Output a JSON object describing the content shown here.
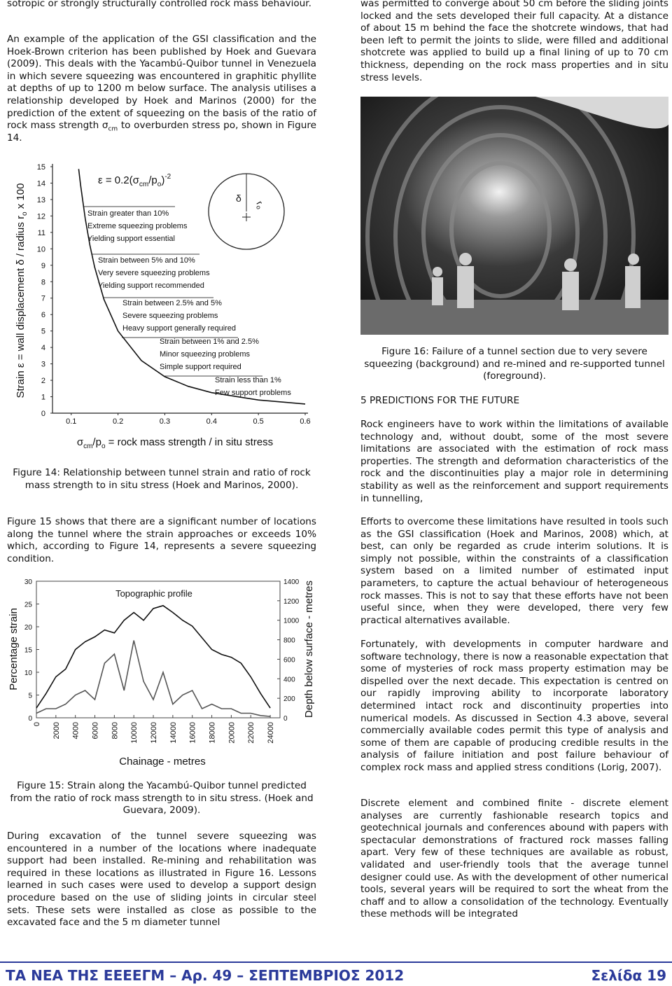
{
  "left_column": {
    "fragment": "sotropic or strongly structurally controlled rock mass behaviour.",
    "paragraph_1": {
      "before": "An example of the application of the GSI classification and the Hoek-Brown criterion has been published by Hoek and Guevara (2009). This deals with the Yacambú-Quibor tunnel in Venezuela in which severe squeezing was encountered in graphitic phyllite at depths of up to 1200 m below surface. The analysis utilises a relationship developed by Hoek and Marinos (2000) for the prediction of the extent of squeezing on the basis of the ratio of rock mass strength σ",
      "sub": "cm",
      "after": " to overburden stress po, shown in Figure 14."
    },
    "caption_14": "Figure 14: Relationship between tunnel strain and ratio of rock mass strength to in situ stress (Hoek and Marinos, 2000).",
    "paragraph_2": "Figure 15 shows that there are a significant number of locations along the tunnel where the strain approaches or exceeds 10% which, according to Figure 14, represents a severe squeezing condition.",
    "caption_15": "Figure 15: Strain along the Yacambú-Quibor tunnel predicted from the ratio of rock mass strength to in situ stress. (Hoek and Guevara, 2009).",
    "paragraph_3": "During excavation of the tunnel severe squeezing was encountered in a number of the locations where inadequate support had been installed. Re-mining and rehabilitation was required in these locations as illustrated in Figure 16. Lessons learned in such cases were used to develop a support design procedure based on the use of sliding joints in circular steel sets. These sets were installed as close as possible to the excavated face and the 5 m diameter tunnel"
  },
  "right_column": {
    "paragraph_1": "was permitted to converge about 50 cm before the sliding joints locked and the sets developed their full capacity. At a distance of about 15 m behind the face the shotcrete windows, that had been left to permit the joints to slide, were filled and additional shotcrete was applied to build up a final lining of up to 70 cm thickness, depending on the rock mass properties and in situ stress levels.",
    "caption_16": "Figure 16: Failure of a tunnel section due to very severe squeezing (background) and re-mined and re-supported tunnel (foreground).",
    "heading": "5 PREDICTIONS FOR THE FUTURE",
    "paragraph_2": "Rock engineers have to work within the limitations of available technology and, without doubt, some of the most severe limitations are associated with the estimation of rock mass properties. The strength and deformation characteristics of the rock and the discontinuities play a major role in determining stability as well as the reinforcement and support requirements in tunnelling,",
    "paragraph_3": "Efforts to overcome these limitations have resulted in tools such as the GSI classification (Hoek and Marinos, 2008) which, at best, can only be regarded as crude interim solutions. It is simply not possible, within the constraints of a classification system based on a limited number of estimated input parameters, to capture the actual behaviour of heterogeneous rock masses. This is not to say that these efforts have not been useful since, when they were developed, there very few practical alternatives available.",
    "paragraph_4": "Fortunately, with developments in computer hardware and software technology, there is now a reasonable expectation that some of mysteries of rock mass property estimation may be dispelled over the next decade. This expectation is centred on our rapidly improving ability to incorporate laboratory determined intact rock and discontinuity properties into numerical models. As discussed in Section 4.3 above, several commercially available codes permit this type of analysis and some of them are capable of producing credible results in the analysis of failure initiation and post failure behaviour of complex rock mass and applied stress conditions (Lorig, 2007).",
    "paragraph_5": "Discrete element and combined finite - discrete element analyses are currently fashionable research topics and geotechnical journals and conferences abound with papers with spectacular demonstrations of fractured rock masses falling apart. Very few of these techniques are available as robust, validated and user-friendly tools that the average tunnel designer could use. As with the development of other numerical tools, several years will be required to sort the wheat from the chaff and to allow a consolidation of the technology. Eventually these methods will be integrated"
  },
  "footer": {
    "left": "ΤΑ ΝΕΑ ΤΗΣ ΕΕΕΕΓΜ – Αρ. 49 – ΣΕΠΤΕΜΒΡΙΟΣ 2012",
    "right": "Σελίδα 19"
  },
  "chart_data": [
    {
      "type": "line",
      "formula": [
        "ε = 0.2(σ",
        "cm",
        "/p",
        "o",
        ")",
        "-2"
      ],
      "y_label": [
        "Strain ε = wall displacement δ / radius r",
        "o",
        " x 100"
      ],
      "x_label": [
        "σ",
        "cm",
        "/p",
        "o",
        " = rock mass strength / in situ stress"
      ],
      "circle_labels": [
        "δ",
        "r",
        "o"
      ],
      "x": [
        0.116,
        0.12,
        0.13,
        0.14,
        0.15,
        0.17,
        0.2,
        0.25,
        0.3,
        0.35,
        0.4,
        0.5,
        0.6
      ],
      "values": [
        14.86,
        13.89,
        11.83,
        10.2,
        8.89,
        6.92,
        5.0,
        3.2,
        2.22,
        1.63,
        1.25,
        0.8,
        0.56
      ],
      "color": "#111111",
      "xlim": [
        0.06,
        0.6
      ],
      "ylim": [
        0,
        15
      ],
      "xticks": [
        0.1,
        0.2,
        0.3,
        0.4,
        0.5,
        0.6
      ],
      "yticks": [
        0,
        1,
        2,
        3,
        4,
        5,
        6,
        7,
        8,
        9,
        10,
        11,
        12,
        13,
        14,
        15
      ],
      "annotations": [
        [
          "Strain greater than 10%",
          "Extreme squeezing problems",
          "Yielding support essential"
        ],
        [
          "Strain between 5% and 10%",
          "Very severe squeezing problems",
          "Yielding support recommended"
        ],
        [
          "Strain between 2.5% and 5%",
          "Severe squeezing problems",
          "Heavy support generally required"
        ],
        [
          "Strain between 1% and 2.5%",
          "Minor squeezing problems",
          "Simple support required"
        ],
        [
          "Strain less than 1%",
          "Few support problems"
        ]
      ]
    },
    {
      "type": "line",
      "y_label": "Percentage strain",
      "y2_label": "Depth below surface - metres",
      "x_label": "Chainage - metres",
      "annotation": "Topographic profile",
      "x": [
        0,
        1000,
        2000,
        3000,
        4000,
        5000,
        6000,
        7000,
        8000,
        9000,
        10000,
        11000,
        12000,
        13000,
        14000,
        15000,
        16000,
        17000,
        18000,
        19000,
        20000,
        21000,
        22000,
        23000,
        24000
      ],
      "series": [
        {
          "color": "#555555",
          "values": [
            1,
            2,
            2,
            3,
            5,
            6,
            4,
            12,
            14,
            6,
            17,
            8,
            4,
            10,
            3,
            5,
            6,
            2,
            3,
            2,
            2,
            1,
            1,
            0.5,
            0.3
          ]
        },
        {
          "color": "#111111",
          "axis": "y2",
          "values": [
            100,
            250,
            420,
            500,
            700,
            780,
            830,
            900,
            870,
            1000,
            1080,
            1000,
            1120,
            1150,
            1080,
            1000,
            940,
            820,
            700,
            650,
            620,
            560,
            420,
            250,
            100
          ]
        }
      ],
      "xlim": [
        0,
        25000
      ],
      "ylim": [
        0,
        30
      ],
      "y2lim": [
        0,
        1400
      ],
      "xticks": [
        0,
        2000,
        4000,
        6000,
        8000,
        10000,
        12000,
        14000,
        16000,
        18000,
        20000,
        22000,
        24000
      ],
      "yticks": [
        0,
        5,
        10,
        15,
        20,
        25,
        30
      ],
      "y2ticks": [
        0,
        200,
        400,
        600,
        800,
        1000,
        1200,
        1400
      ]
    }
  ]
}
